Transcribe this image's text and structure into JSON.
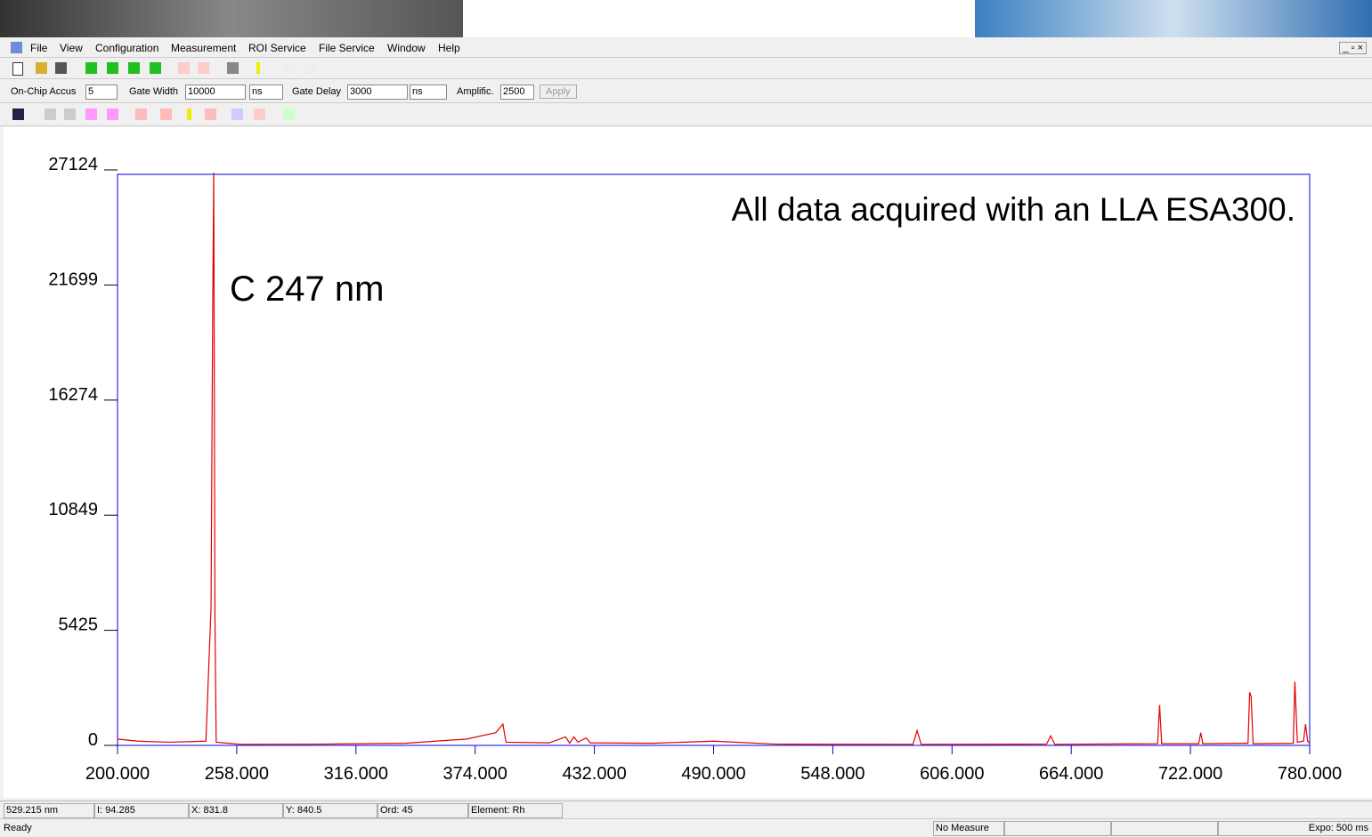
{
  "menu": [
    "File",
    "View",
    "Configuration",
    "Measurement",
    "ROI Service",
    "File Service",
    "Window",
    "Help"
  ],
  "params": {
    "accus_label": "On-Chip Accus",
    "accus": "5",
    "width_label": "Gate Width",
    "width": "10000",
    "width_unit": "ns",
    "delay_label": "Gate Delay",
    "delay": "3000",
    "delay_unit": "ns",
    "amp_label": "Amplific.",
    "amp": "2500",
    "apply": "Apply"
  },
  "chart_data": {
    "type": "line",
    "annotations": [
      "All data acquired with an LLA ESA300.",
      "C 247 nm"
    ],
    "x": [
      200,
      210,
      225,
      243,
      245.5,
      246.3,
      246.8,
      247.4,
      248,
      260,
      300,
      340,
      370,
      384,
      387.5,
      389,
      410,
      418,
      420,
      422,
      424,
      428,
      430,
      460,
      490,
      520,
      587,
      589,
      591,
      652,
      654,
      656,
      706,
      707,
      708,
      726,
      727,
      728,
      750,
      750.8,
      751.5,
      752.5,
      772,
      772.8,
      774,
      777,
      778,
      779,
      780
    ],
    "series": [
      {
        "color": "#e00000",
        "values": [
          300,
          200,
          150,
          200,
          6500,
          20500,
          27000,
          6000,
          150,
          50,
          60,
          100,
          300,
          600,
          1000,
          150,
          120,
          400,
          100,
          400,
          150,
          350,
          120,
          100,
          200,
          60,
          50,
          700,
          50,
          60,
          450,
          50,
          80,
          1900,
          80,
          80,
          600,
          80,
          100,
          2500,
          2300,
          80,
          100,
          3000,
          150,
          200,
          1000,
          200,
          100
        ]
      }
    ],
    "xlim": [
      200,
      780
    ],
    "ylim": [
      0,
      27124
    ],
    "xticks": [
      {
        "value": 200,
        "label": "200.000"
      },
      {
        "value": 258,
        "label": "258.000"
      },
      {
        "value": 316,
        "label": "316.000"
      },
      {
        "value": 374,
        "label": "374.000"
      },
      {
        "value": 432,
        "label": "432.000"
      },
      {
        "value": 490,
        "label": "490.000"
      },
      {
        "value": 548,
        "label": "548.000"
      },
      {
        "value": 606,
        "label": "606.000"
      },
      {
        "value": 664,
        "label": "664.000"
      },
      {
        "value": 722,
        "label": "722.000"
      },
      {
        "value": 780,
        "label": "780.000"
      }
    ],
    "yticks": [
      0,
      5425,
      10849,
      16274,
      21699,
      27124
    ],
    "axis_color": "#0000e0"
  },
  "status": {
    "cells": [
      "529.215 nm",
      "I: 94.285",
      "X: 831.8",
      "Y: 840.5",
      "Ord: 45",
      "Element: Rh"
    ],
    "ready": "Ready",
    "measure": "No Measure",
    "expo": "Expo: 500 ms"
  }
}
